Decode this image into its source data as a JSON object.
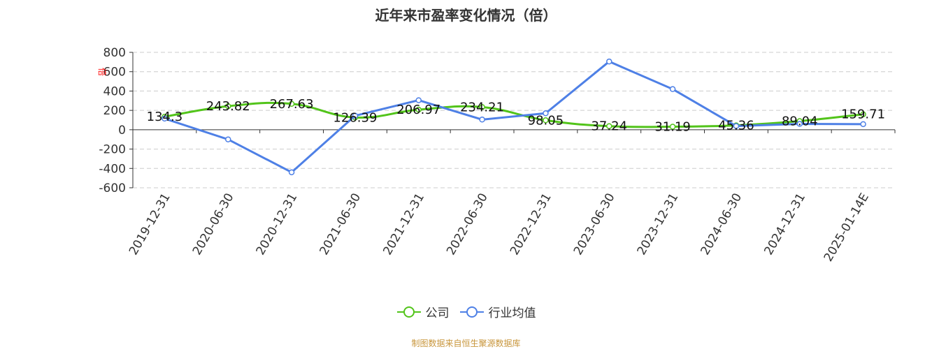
{
  "title": "近年来市盈率变化情况（倍）",
  "y_unit_label": "倍",
  "legend": [
    {
      "label": "公司",
      "color": "#52c41a"
    },
    {
      "label": "行业均值",
      "color": "#4e80e6"
    }
  ],
  "source": "制图数据来自恒生聚源数据库",
  "chart_data": {
    "type": "line",
    "title": "近年来市盈率变化情况（倍）",
    "xlabel": "",
    "ylabel": "倍",
    "ylim": [
      -600,
      800
    ],
    "yticks": [
      800,
      600,
      400,
      200,
      0,
      -200,
      -400,
      -600
    ],
    "grid": "horizontal dashed",
    "legend_position": "bottom",
    "categories": [
      "2019-12-31",
      "2020-06-30",
      "2020-12-31",
      "2021-06-30",
      "2021-12-31",
      "2022-06-30",
      "2022-12-31",
      "2023-06-30",
      "2023-12-31",
      "2024-06-30",
      "2024-12-31",
      "2025-01-14E"
    ],
    "series": [
      {
        "name": "公司",
        "color": "#52c41a",
        "smooth": true,
        "labels": true,
        "values": [
          134.3,
          243.82,
          267.63,
          126.39,
          206.97,
          234.21,
          98.05,
          37.24,
          31.19,
          45.36,
          89.04,
          159.71
        ]
      },
      {
        "name": "行业均值",
        "color": "#4e80e6",
        "smooth": false,
        "labels": false,
        "values": [
          115,
          -100,
          -440,
          145,
          305,
          105,
          170,
          705,
          420,
          38,
          60,
          58
        ]
      }
    ]
  }
}
